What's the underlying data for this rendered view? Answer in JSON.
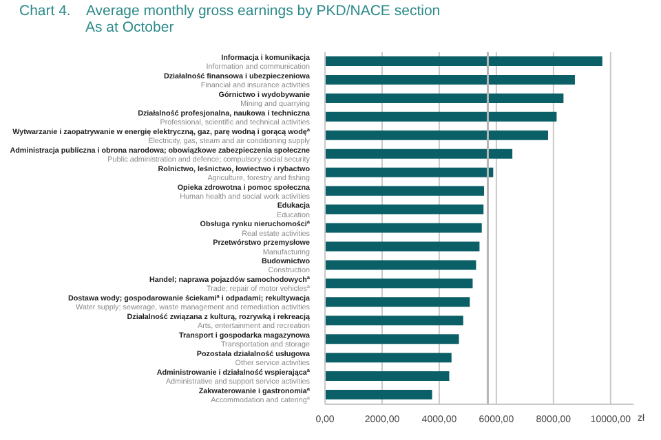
{
  "chart_data": {
    "type": "bar",
    "orientation": "horizontal",
    "title": "Chart 4.    Average monthly gross earnings by PKD/NACE section",
    "subtitle": "As at October",
    "xlabel": "zł",
    "categories": [
      "Informacja i komunikacja\nInformation and communication",
      "Działalność finansowa i ubezpieczeniowa\nFinancial and insurance activities",
      "Górnictwo i wydobywanie\nMining and quarrying",
      "Działalność profesjonalna, naukowa i techniczna\nProfessional, scientific and technical activities",
      "Wytwarzanie i zaopatrywanie w energię elektryczną, gaz, parę wodną i gorącą wodę$^{a}$\nElectricity, gas, steam and air conditioning supply",
      "Administracja publiczna i obrona narodowa; obowiązkowe zabezpieczenia społeczne\nPublic administration and defence; compulsory social security",
      "Rolnictwo, leśnictwo, łowiectwo i rybactwo\nAgriculture, forestry and fishing",
      "Opieka zdrowotna i pomoc społeczna\nHuman health and social work activities",
      "Edukacja\nEducation",
      "Obsługa rynku nieruchomości$^{a}$\nReal estate activities",
      "Przetwórstwo przemysłowe\nManufacturing",
      "Budownictwo\nConstruction",
      "Handel; naprawa pojazdów samochodowych$^{a}$\nTrade; repair of motor vehicles$^{a}$",
      "Dostawa wody; gospodarowanie ściekami$^{a}$ i odpadami; rekultywacja\nWater supply; sewerage, waste management and remediation activities",
      "Działalność związana z kulturą, rozrywką i rekreacją\nArts, entertainment and recreation",
      "Transport i gospodarka magazynowa\nTransportation and storage",
      "Pozostała działalność usługowa\nOther service activities",
      "Administrowanie i działalność wspierająca$^{a}$\nAdministrative and support service activities",
      "Zakwaterowanie i gastronomia$^{a}$\nAccommodation and catering$^{a}$"
    ],
    "values": [
      9710,
      8750,
      8350,
      8110,
      7810,
      6560,
      5890,
      5570,
      5550,
      5490,
      5410,
      5290,
      5170,
      5070,
      4840,
      4690,
      4430,
      4350,
      3750
    ],
    "color": "#0b5f66",
    "xlim": [
      0,
      10800
    ],
    "xticks": [
      {
        "value": 0,
        "label": "0,00"
      },
      {
        "value": 2000,
        "label": "2000,00"
      },
      {
        "value": 4000,
        "label": "4000,00"
      },
      {
        "value": 6000,
        "label": "6000,00"
      },
      {
        "value": 8000,
        "label": "8000,00"
      },
      {
        "value": 10000,
        "label": "10000,00"
      }
    ],
    "ref_lines": [
      {
        "axis": "x",
        "value": 5700,
        "label": null,
        "color": "#b5b5b5"
      }
    ],
    "grid": "x"
  }
}
